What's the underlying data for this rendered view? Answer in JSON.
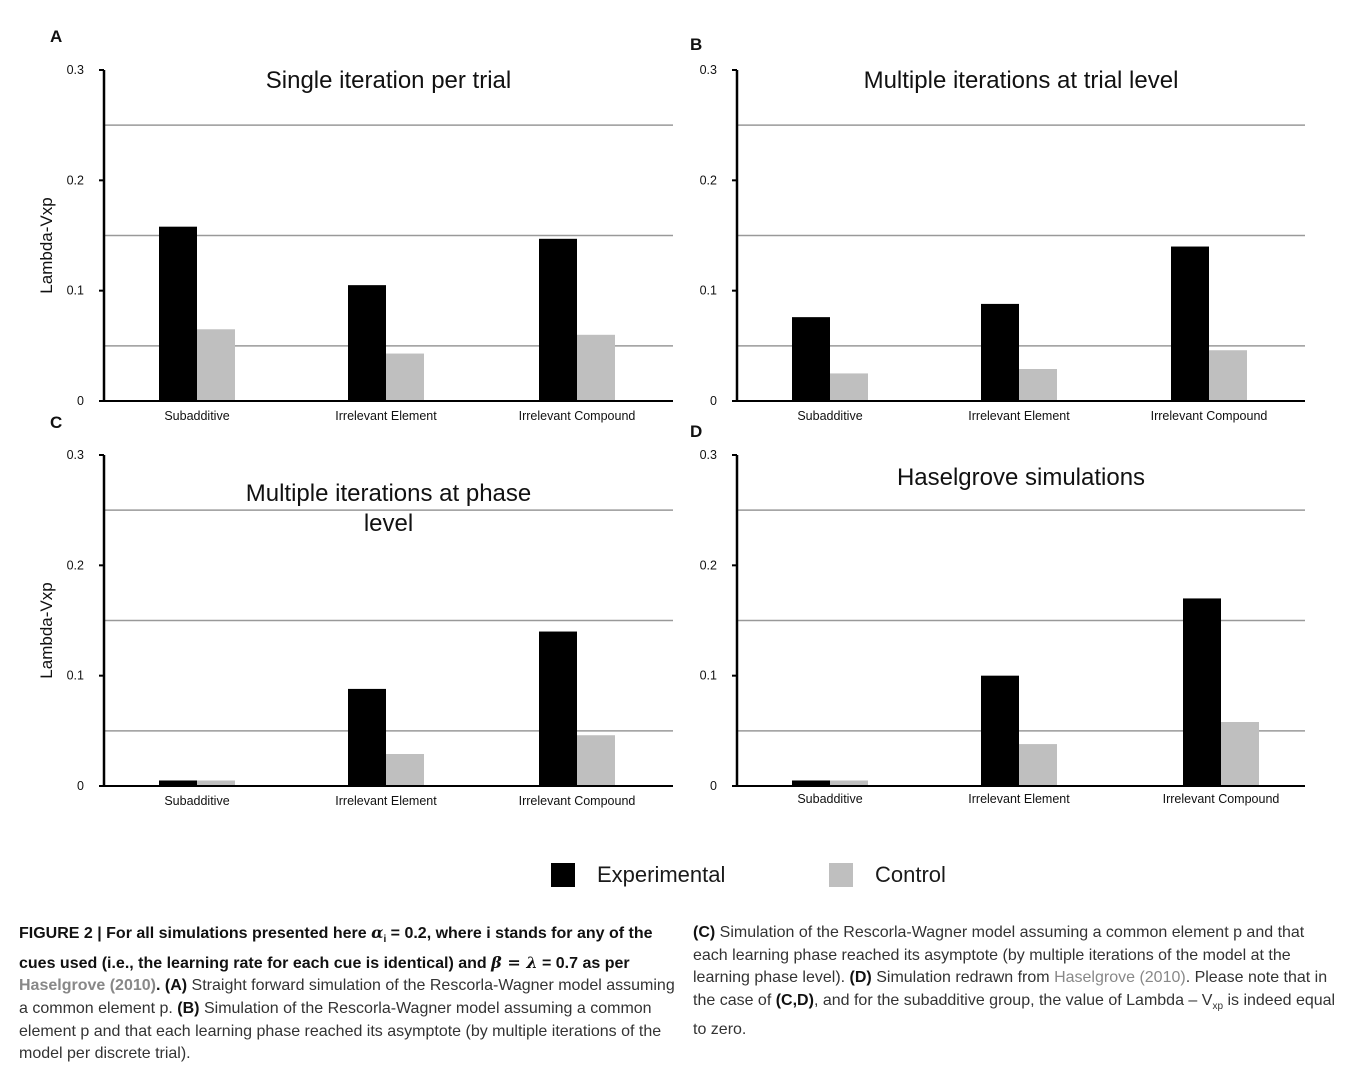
{
  "chart_data": [
    {
      "panel": "A",
      "type": "bar",
      "title": "Single iteration per trial",
      "ylabel": "Lambda-Vxp",
      "xlabel": "",
      "ylim": [
        0,
        0.3
      ],
      "yticks": [
        "0",
        "0.1",
        "0.2",
        "0.3"
      ],
      "grid_lines": [
        0.05,
        0.15,
        0.25
      ],
      "categories": [
        "Subadditive",
        "Irrelevant Element",
        "Irrelevant Compound"
      ],
      "series": [
        {
          "name": "Experimental",
          "values": [
            0.158,
            0.105,
            0.147
          ]
        },
        {
          "name": "Control",
          "values": [
            0.065,
            0.043,
            0.06
          ]
        }
      ]
    },
    {
      "panel": "B",
      "type": "bar",
      "title": "Multiple iterations at trial level",
      "ylabel": "",
      "xlabel": "",
      "ylim": [
        0,
        0.3
      ],
      "yticks": [
        "0",
        "0.1",
        "0.2",
        "0.3"
      ],
      "grid_lines": [
        0.05,
        0.15,
        0.25
      ],
      "categories": [
        "Subadditive",
        "Irrelevant Element",
        "Irrelevant Compound"
      ],
      "series": [
        {
          "name": "Experimental",
          "values": [
            0.076,
            0.088,
            0.14
          ]
        },
        {
          "name": "Control",
          "values": [
            0.025,
            0.029,
            0.046
          ]
        }
      ]
    },
    {
      "panel": "C",
      "type": "bar",
      "title": "Multiple iterations at phase level",
      "ylabel": "Lambda-Vxp",
      "xlabel": "",
      "ylim": [
        0,
        0.3
      ],
      "yticks": [
        "0",
        "0.1",
        "0.2",
        "0.3"
      ],
      "grid_lines": [
        0.05,
        0.15,
        0.25
      ],
      "categories": [
        "Subadditive",
        "Irrelevant Element",
        "Irrelevant Compound"
      ],
      "series": [
        {
          "name": "Experimental",
          "values": [
            0.005,
            0.088,
            0.14
          ]
        },
        {
          "name": "Control",
          "values": [
            0.005,
            0.029,
            0.046
          ]
        }
      ]
    },
    {
      "panel": "D",
      "type": "bar",
      "title": "Haselgrove simulations",
      "ylabel": "",
      "xlabel": "",
      "ylim": [
        0,
        0.3
      ],
      "yticks": [
        "0",
        "0.1",
        "0.2",
        "0.3"
      ],
      "grid_lines": [
        0.05,
        0.15,
        0.25
      ],
      "categories": [
        "Subadditive",
        "Irrelevant Element",
        "Irrelevant Compound"
      ],
      "series": [
        {
          "name": "Experimental",
          "values": [
            0.005,
            0.1,
            0.17
          ]
        },
        {
          "name": "Control",
          "values": [
            0.005,
            0.038,
            0.058
          ]
        }
      ]
    }
  ],
  "legend": {
    "placement": "bottom-center",
    "items": [
      {
        "label": "Experimental",
        "color": "#000000"
      },
      {
        "label": "Control",
        "color": "#bfbfbf"
      }
    ]
  },
  "colors": {
    "experimental": "#000000",
    "control": "#bfbfbf",
    "grid": "#999999",
    "reference": "#888888"
  },
  "caption": {
    "figure_label": "FIGURE 2 | For all simulations presented here ",
    "alpha": "α",
    "alpha_sub": "i",
    "bold_1": " = 0.2, where i stands for any of the cues used (i.e., the learning rate for each cue is identical) and ",
    "beta_lambda": "β = λ",
    "bold_2": " = 0.7 as per ",
    "ref_bold": "Haselgrove (2010)",
    "bold_3": ".",
    "label_A": "(A)",
    "text_A": " Straight forward simulation of the Rescorla-Wagner model assuming a common element p. ",
    "label_B": "(B)",
    "text_B": " Simulation of the Rescorla-Wagner model assuming a common element p and that each learning phase reached its asymptote (by multiple iterations of the model per discrete trial). ",
    "label_C": "(C)",
    "text_C": " Simulation of the Rescorla-Wagner model assuming a common element p and that each learning phase reached its asymptote (by multiple iterations of the model at the learning phase level). ",
    "label_D": "(D)",
    "text_D1": " Simulation redrawn from ",
    "ref_D": "Haselgrove (2010)",
    "text_D2": ". Please note that in the case of ",
    "label_CD": "(C,D)",
    "text_D3": ", and for the subadditive group, the value of Lambda – V",
    "sub_xp": "xp",
    "text_D4": " is indeed equal to zero."
  }
}
